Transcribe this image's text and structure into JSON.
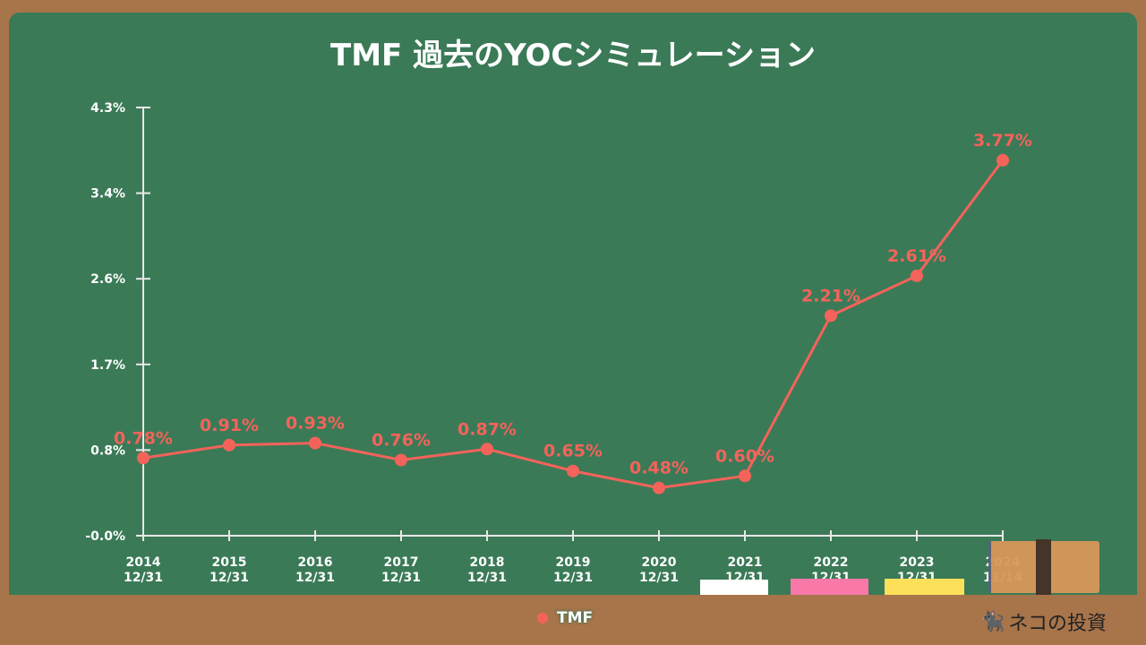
{
  "title": "TMF 過去のYOCシミュレーション",
  "chart_data": {
    "type": "line",
    "title": "TMF 過去のYOCシミュレーション",
    "categories": [
      [
        "2014",
        "12/31"
      ],
      [
        "2015",
        "12/31"
      ],
      [
        "2016",
        "12/31"
      ],
      [
        "2017",
        "12/31"
      ],
      [
        "2018",
        "12/31"
      ],
      [
        "2019",
        "12/31"
      ],
      [
        "2020",
        "12/31"
      ],
      [
        "2021",
        "12/31"
      ],
      [
        "2022",
        "12/31"
      ],
      [
        "2023",
        "12/31"
      ],
      [
        "2024",
        "11/14"
      ]
    ],
    "series": [
      {
        "name": "TMF",
        "values": [
          0.78,
          0.91,
          0.93,
          0.76,
          0.87,
          0.65,
          0.48,
          0.6,
          2.21,
          2.61,
          3.77
        ],
        "labels": [
          "0.78%",
          "0.91%",
          "0.93%",
          "0.76%",
          "0.87%",
          "0.65%",
          "0.48%",
          "0.60%",
          "2.21%",
          "2.61%",
          "3.77%"
        ],
        "color": "#f4635a"
      }
    ],
    "yticks": [
      "-0.0%",
      "0.8%",
      "1.7%",
      "2.6%",
      "3.4%",
      "4.3%"
    ],
    "ylim": [
      0,
      4.3
    ],
    "grid": false,
    "legend": "bottom"
  },
  "legend": {
    "label": "TMF"
  },
  "logo": {
    "text": "ネコの投資"
  },
  "colors": {
    "board": "#3b7a57",
    "frame": "#a8744a",
    "line": "#f4635a"
  }
}
